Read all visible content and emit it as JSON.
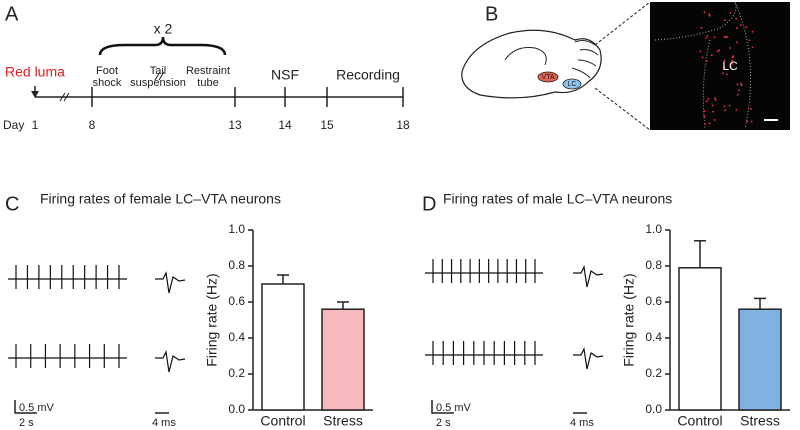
{
  "panel_a": {
    "letter": "A",
    "start_label": "Red luma",
    "repeat_label": "x 2",
    "day_label": "Day",
    "days": [
      1,
      8,
      13,
      14,
      15,
      18
    ],
    "stress_labels": [
      [
        "Foot",
        "shock"
      ],
      [
        "Tail",
        "suspension"
      ],
      [
        "Restraint",
        "tube"
      ]
    ],
    "nsf_label": "NSF",
    "recording_label": "Recording"
  },
  "panel_b": {
    "letter": "B",
    "vta_label": "VTA",
    "lc_label": "LC",
    "image_label": "LC"
  },
  "panel_c": {
    "letter": "C",
    "scale_voltage": "0.5 mV",
    "scale_time": "2 s",
    "scale_waveform": "4 ms"
  },
  "panel_d": {
    "letter": "D",
    "scale_voltage": "0.5 mV",
    "scale_time": "2 s",
    "scale_waveform": "4 ms"
  },
  "chart_data": [
    {
      "type": "bar",
      "title": "Firing rates of female LC–VTA neurons",
      "ylabel": "Firing rate (Hz)",
      "categories": [
        "Control",
        "Stress"
      ],
      "values": [
        0.7,
        0.56
      ],
      "errors": [
        0.05,
        0.04
      ],
      "colors": [
        "#ffffff",
        "#f7b9bd"
      ],
      "ylim": [
        0,
        1.0
      ],
      "yticks": [
        {
          "value": 0,
          "label": "0.0"
        },
        {
          "value": 0.2,
          "label": "0.2"
        },
        {
          "value": 0.4,
          "label": "0.4"
        },
        {
          "value": 0.6,
          "label": "0.6"
        },
        {
          "value": 0.8,
          "label": "0.8"
        },
        {
          "value": 1.0,
          "label": "1.0"
        }
      ]
    },
    {
      "type": "bar",
      "title": "Firing rates of male LC–VTA neurons",
      "ylabel": "Firing rate (Hz)",
      "categories": [
        "Control",
        "Stress"
      ],
      "values": [
        0.79,
        0.56
      ],
      "errors": [
        0.15,
        0.06
      ],
      "colors": [
        "#ffffff",
        "#7fb2e0"
      ],
      "ylim": [
        0,
        1.0
      ],
      "yticks": [
        {
          "value": 0,
          "label": "0.0"
        },
        {
          "value": 0.2,
          "label": "0.2"
        },
        {
          "value": 0.4,
          "label": "0.4"
        },
        {
          "value": 0.6,
          "label": "0.6"
        },
        {
          "value": 0.8,
          "label": "0.8"
        },
        {
          "value": 1.0,
          "label": "1.0"
        }
      ]
    }
  ]
}
